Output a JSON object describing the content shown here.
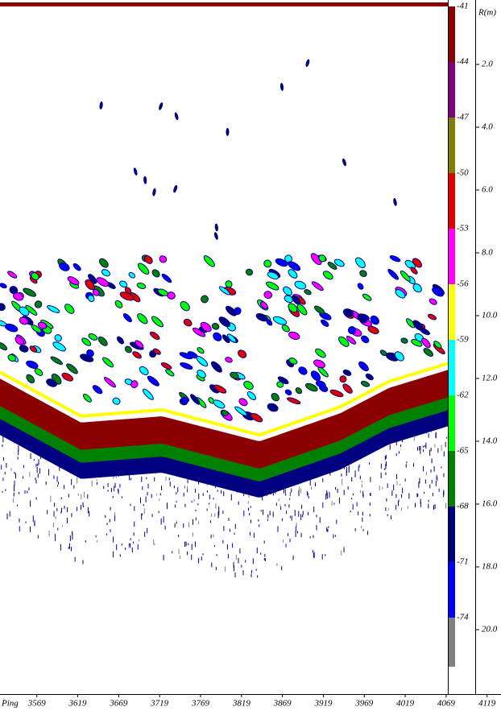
{
  "chart_data": {
    "type": "echogram",
    "x_label": "Ping",
    "y_label": "R(m)",
    "xlim": [
      3524,
      4136
    ],
    "xticks": [
      3569,
      3619,
      3669,
      3719,
      3769,
      3819,
      3869,
      3919,
      3969,
      4019,
      4069,
      4119
    ],
    "ylim": [
      0,
      22
    ],
    "yticks": [
      {
        "value": 2,
        "label": "2.0"
      },
      {
        "value": 4,
        "label": "4.0"
      },
      {
        "value": 6,
        "label": "6.0"
      },
      {
        "value": 8,
        "label": "8.0"
      },
      {
        "value": 10,
        "label": "10.0"
      },
      {
        "value": 12,
        "label": "12.0"
      },
      {
        "value": 14,
        "label": "14.0"
      },
      {
        "value": 16,
        "label": "16.0"
      },
      {
        "value": 18,
        "label": "18.0"
      },
      {
        "value": 20,
        "label": "20.0"
      }
    ],
    "bottom_line": {
      "x": [
        3524,
        3623,
        3722,
        3841,
        3940,
        3999,
        4074
      ],
      "values": [
        11.8,
        13.2,
        13.0,
        13.8,
        12.9,
        12.1,
        11.5
      ],
      "color": "#ffff00"
    },
    "colorbar": {
      "levels": [
        -41,
        -44,
        -47,
        -50,
        -53,
        -56,
        -59,
        -62,
        -65,
        -68,
        -71,
        -74
      ],
      "colors": [
        "#8b0000",
        "#800080",
        "#808000",
        "#e00000",
        "#ff00ff",
        "#ffff00",
        "#00ffff",
        "#00ff00",
        "#008000",
        "#000080",
        "#0000ff",
        "#808080"
      ]
    }
  }
}
